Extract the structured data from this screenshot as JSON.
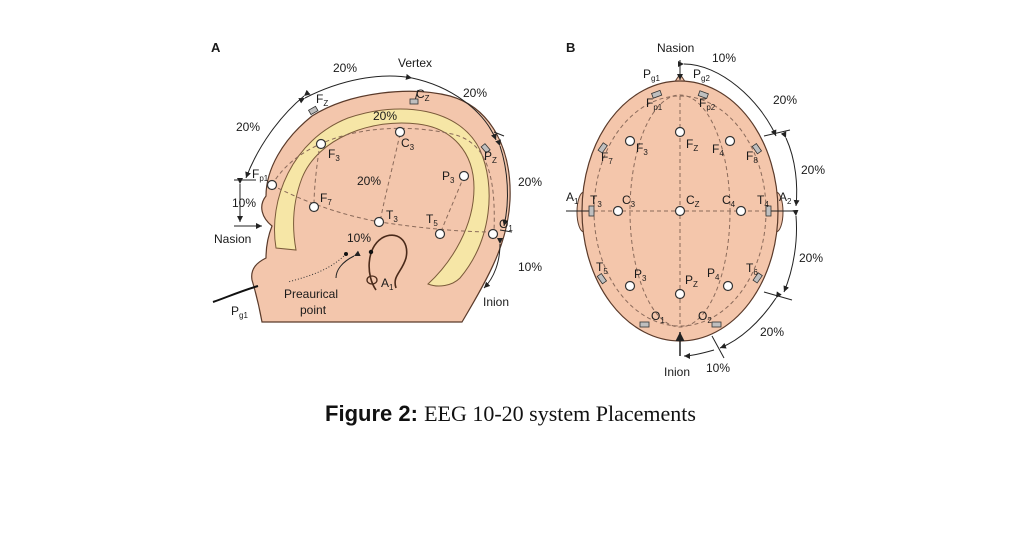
{
  "panels": {
    "a": "A",
    "b": "B"
  },
  "side_view": {
    "pct": {
      "top_left": "20%",
      "top_right": "20%",
      "left": "20%",
      "mid_top": "20%",
      "mid": "20%",
      "right": "20%",
      "nasion_gap": "10%",
      "preauricular": "10%",
      "inion_gap": "10%"
    },
    "labels": {
      "vertex": "Vertex",
      "nasion": "Nasion",
      "inion": "Inion",
      "preauricular_1": "Preaurical",
      "preauricular_2": "point"
    },
    "electrodes": [
      {
        "base": "F",
        "sub": "Z"
      },
      {
        "base": "C",
        "sub": "Z"
      },
      {
        "base": "F",
        "sub": "p1"
      },
      {
        "base": "F",
        "sub": "3"
      },
      {
        "base": "C",
        "sub": "3"
      },
      {
        "base": "F",
        "sub": "7"
      },
      {
        "base": "T",
        "sub": "3"
      },
      {
        "base": "T",
        "sub": "5"
      },
      {
        "base": "P",
        "sub": "3"
      },
      {
        "base": "P",
        "sub": "Z"
      },
      {
        "base": "O",
        "sub": "1"
      },
      {
        "base": "A",
        "sub": "1"
      },
      {
        "base": "P",
        "sub": "g1"
      }
    ]
  },
  "top_view": {
    "pct": {
      "top": "10%",
      "r1": "20%",
      "r2": "20%",
      "r3": "20%",
      "r4": "20%",
      "bottom": "10%"
    },
    "labels": {
      "nasion": "Nasion",
      "inion": "Inion"
    },
    "electrodes": [
      {
        "base": "P",
        "sub": "g1"
      },
      {
        "base": "P",
        "sub": "g2"
      },
      {
        "base": "F",
        "sub": "p1"
      },
      {
        "base": "F",
        "sub": "p2"
      },
      {
        "base": "F",
        "sub": "7"
      },
      {
        "base": "F",
        "sub": "3"
      },
      {
        "base": "F",
        "sub": "Z"
      },
      {
        "base": "F",
        "sub": "4"
      },
      {
        "base": "F",
        "sub": "8"
      },
      {
        "base": "A",
        "sub": "1"
      },
      {
        "base": "T",
        "sub": "3"
      },
      {
        "base": "C",
        "sub": "3"
      },
      {
        "base": "C",
        "sub": "Z"
      },
      {
        "base": "C",
        "sub": "4"
      },
      {
        "base": "T",
        "sub": "4"
      },
      {
        "base": "A",
        "sub": "2"
      },
      {
        "base": "T",
        "sub": "5"
      },
      {
        "base": "P",
        "sub": "3"
      },
      {
        "base": "P",
        "sub": "Z"
      },
      {
        "base": "P",
        "sub": "4"
      },
      {
        "base": "T",
        "sub": "6"
      },
      {
        "base": "O",
        "sub": "1"
      },
      {
        "base": "O",
        "sub": "2"
      }
    ]
  },
  "caption": {
    "figure": "Figure 2:",
    "text": "EEG 10-20 system Placements"
  }
}
